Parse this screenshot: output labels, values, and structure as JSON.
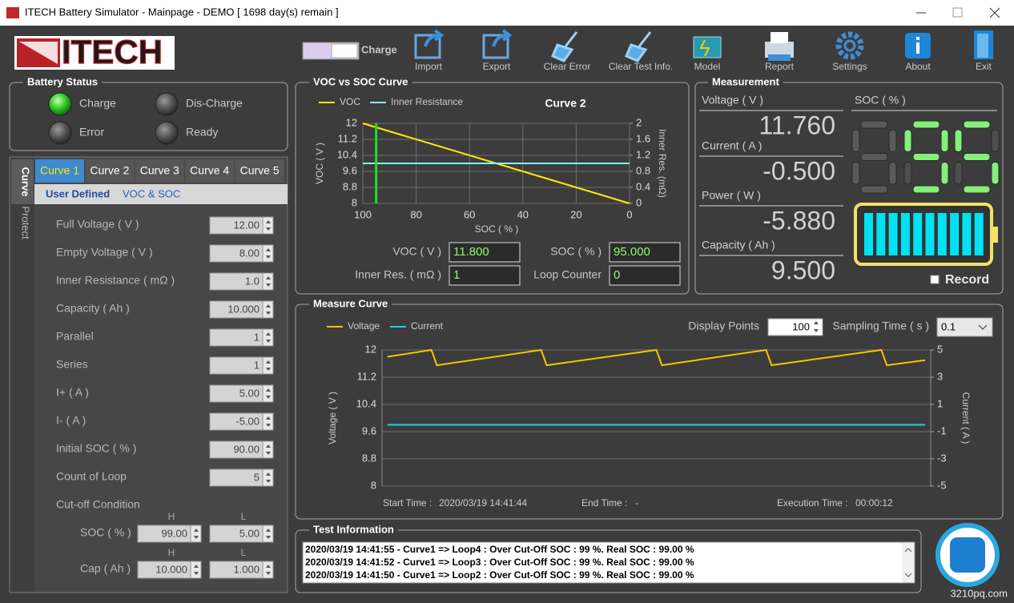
{
  "window": {
    "title": "ITECH Battery Simulator - Mainpage - DEMO [ 1698 day(s) remain ]"
  },
  "logo": "ITECH",
  "mode_toggle": "Charge",
  "toolbar": [
    "Import",
    "Export",
    "Clear Error",
    "Clear Test Info.",
    "Model",
    "Report",
    "Settings",
    "About",
    "Exit"
  ],
  "battery_status": {
    "title": "Battery Status",
    "indicators": [
      {
        "label": "Charge",
        "on": true
      },
      {
        "label": "Dis-Charge",
        "on": false
      },
      {
        "label": "Error",
        "on": false
      },
      {
        "label": "Ready",
        "on": false
      }
    ]
  },
  "side_tabs": [
    "Curve",
    "Protect"
  ],
  "curve_tabs": [
    "Curve 1",
    "Curve 2",
    "Curve 3",
    "Curve 4",
    "Curve 5"
  ],
  "active_curve_tab": 0,
  "sub_tabs": [
    "User Defined",
    "VOC & SOC"
  ],
  "parameters": [
    {
      "label": "Full Voltage ( V )",
      "value": "12.00"
    },
    {
      "label": "Empty Voltage ( V )",
      "value": "8.00"
    },
    {
      "label": "Inner Resistance ( mΩ )",
      "value": "1.0"
    },
    {
      "label": "Capacity ( Ah )",
      "value": "10.000"
    },
    {
      "label": "Parallel",
      "value": "1"
    },
    {
      "label": "Series",
      "value": "1"
    },
    {
      "label": "I+ ( A )",
      "value": "5.00"
    },
    {
      "label": "I- ( A )",
      "value": "-5.00"
    },
    {
      "label": "Initial SOC ( % )",
      "value": "90.00"
    },
    {
      "label": "Count of Loop",
      "value": "5"
    }
  ],
  "cutoff": {
    "title": "Cut-off Condition",
    "columns": [
      "H",
      "L"
    ],
    "rows": [
      {
        "label": "SOC ( % )",
        "h": "99.00",
        "l": "5.00"
      },
      {
        "label": "Cap ( Ah )",
        "h": "10.000",
        "l": "1.000"
      }
    ]
  },
  "voc_soc": {
    "title": "VOC vs SOC Curve",
    "chart_title": "Curve 2",
    "y_label": "VOC ( V )",
    "y2_label": "Inner Res. (mΩ)",
    "x_label": "SOC ( % )",
    "xlim": [
      100,
      0
    ],
    "xticks": [
      100,
      80,
      60,
      40,
      20,
      0
    ],
    "ylim": [
      8,
      12
    ],
    "yticks": [
      8,
      8.8,
      9.6,
      10.4,
      11.2,
      12
    ],
    "y2lim": [
      0,
      2
    ],
    "y2ticks": [
      0,
      0.4,
      0.8,
      1.2,
      1.6,
      2
    ],
    "grid": true,
    "series": [
      {
        "name": "VOC",
        "color": "#ffee00",
        "x": [
          100,
          0
        ],
        "values": [
          12,
          8
        ]
      },
      {
        "name": "Inner Resistance",
        "color": "#7ff5ff",
        "x": [
          100,
          0
        ],
        "values": [
          1,
          1
        ],
        "axis": "y2"
      }
    ],
    "marker": {
      "x": 95,
      "color": "#22dd22"
    },
    "fields": [
      {
        "label": "VOC ( V )",
        "value": "11.800"
      },
      {
        "label": "SOC ( % )",
        "value": "95.000"
      },
      {
        "label": "Inner Res. ( mΩ )",
        "value": "1"
      },
      {
        "label": "Loop Counter",
        "value": "0"
      }
    ]
  },
  "measurement": {
    "title": "Measurement",
    "items": [
      {
        "label": "Voltage ( V )",
        "value": "11.760"
      },
      {
        "label": "Current ( A )",
        "value": "-0.500"
      },
      {
        "label": "Power ( W )",
        "value": "-5.880"
      },
      {
        "label": "Capacity ( Ah )",
        "value": "9.500"
      }
    ],
    "soc_label": "SOC ( % )",
    "soc_display": 95,
    "record": "Record"
  },
  "measure_curve": {
    "title": "Measure Curve",
    "display_points_label": "Display Points",
    "display_points": "100",
    "sampling_label": "Sampling Time ( s )",
    "sampling": "0.1",
    "y_label": "Voltage ( V )",
    "y2_label": "Current ( A )",
    "xlim": [
      0,
      100
    ],
    "ylim": [
      8,
      12
    ],
    "yticks": [
      8,
      8.8,
      9.6,
      10.4,
      11.2,
      12
    ],
    "y2lim": [
      -5,
      5
    ],
    "y2ticks": [
      -5,
      -3,
      -1,
      1,
      3,
      5
    ],
    "grid": true,
    "series": [
      {
        "name": "Voltage",
        "color": "#f5c400",
        "x": [
          1,
          9,
          10,
          29,
          30,
          50,
          51,
          70,
          71,
          91,
          92,
          99
        ],
        "values": [
          11.8,
          12.0,
          11.55,
          12.0,
          11.55,
          12.0,
          11.55,
          12.0,
          11.55,
          12.0,
          11.55,
          11.7
        ]
      },
      {
        "name": "Current",
        "color": "#1fd3e0",
        "x": [
          1,
          99
        ],
        "values": [
          -0.5,
          -0.5
        ],
        "axis": "y2"
      }
    ],
    "times": [
      {
        "label": "Start Time :",
        "value": "2020/03/19 14:41:44"
      },
      {
        "label": "End Time :",
        "value": "-"
      },
      {
        "label": "Execution Time :",
        "value": "00:00:12"
      }
    ]
  },
  "test_information": {
    "title": "Test Information",
    "lines": [
      "2020/03/19 14:41:55 - Curve1 => Loop4 : Over Cut-Off SOC : 99 %. Real SOC : 99.00 %",
      "2020/03/19 14:41:52 - Curve1 => Loop3 : Over Cut-Off SOC : 99 %. Real SOC : 99.00 %",
      "2020/03/19 14:41:50 - Curve1 => Loop2 : Over Cut-Off SOC : 99 %. Real SOC : 99.00 %"
    ]
  },
  "watermark": "3210pq.com"
}
